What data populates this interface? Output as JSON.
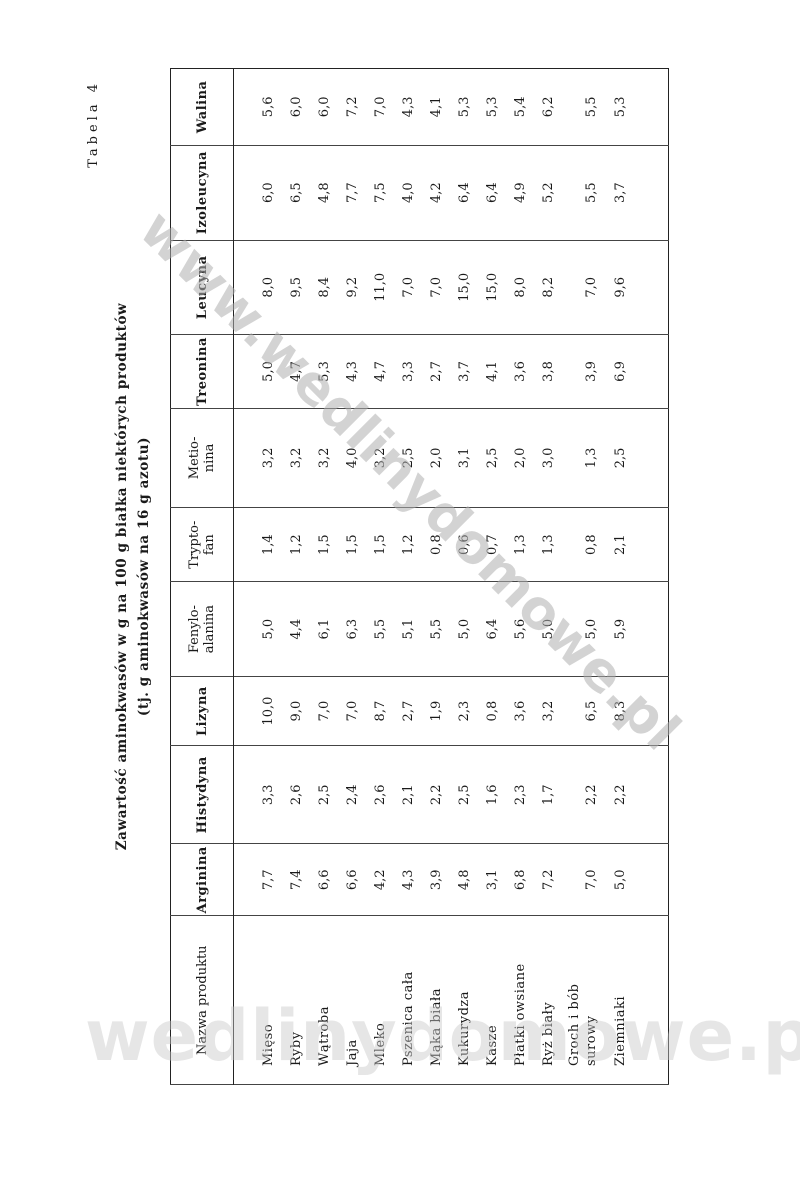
{
  "table_label": "Tabela 4",
  "title_line1": "Zawartość aminokwasów w g na 100 g białka niektórych produktów",
  "title_line2": "(tj. g aminokwasów na 16 g azotu)",
  "columns": [
    "Nazwa produktu",
    "Arginina",
    "Histydyna",
    "Lizyna",
    "Fenylo-\nalanina",
    "Trypto-\nfan",
    "Metio-\nnina",
    "Treonina",
    "Leucyna",
    "Izoleucyna",
    "Walina"
  ],
  "rows": [
    [
      "Mięso",
      "7,7",
      "3,3",
      "10,0",
      "5,0",
      "1,4",
      "3,2",
      "5,0",
      "8,0",
      "6,0",
      "5,6"
    ],
    [
      "Ryby",
      "7,4",
      "2,6",
      "9,0",
      "4,4",
      "1,2",
      "3,2",
      "4,7",
      "9,5",
      "6,5",
      "6,0"
    ],
    [
      "Wątroba",
      "6,6",
      "2,5",
      "7,0",
      "6,1",
      "1,5",
      "3,2",
      "5,3",
      "8,4",
      "4,8",
      "6,0"
    ],
    [
      "Jaja",
      "6,6",
      "2,4",
      "7,0",
      "6,3",
      "1,5",
      "4,0",
      "4,3",
      "9,2",
      "7,7",
      "7,2"
    ],
    [
      "Mleko",
      "4,2",
      "2,6",
      "8,7",
      "5,5",
      "1,5",
      "3,2",
      "4,7",
      "11,0",
      "7,5",
      "7,0"
    ],
    [
      "Pszenica cała",
      "4,3",
      "2,1",
      "2,7",
      "5,1",
      "1,2",
      "2,5",
      "3,3",
      "7,0",
      "4,0",
      "4,3"
    ],
    [
      "Mąka biała",
      "3,9",
      "2,2",
      "1,9",
      "5,5",
      "0,8",
      "2,0",
      "2,7",
      "7,0",
      "4,2",
      "4,1"
    ],
    [
      "Kukurydza",
      "4,8",
      "2,5",
      "2,3",
      "5,0",
      "0,6",
      "3,1",
      "3,7",
      "15,0",
      "6,4",
      "5,3"
    ],
    [
      "Kasze",
      "3,1",
      "1,6",
      "0,8",
      "6,4",
      "0,7",
      "2,5",
      "4,1",
      "15,0",
      "6,4",
      "5,3"
    ],
    [
      "Płatki owsiane",
      "6,8",
      "2,3",
      "3,6",
      "5,6",
      "1,3",
      "2,0",
      "3,6",
      "8,0",
      "4,9",
      "5,4"
    ],
    [
      "Ryż biały",
      "7,2",
      "1,7",
      "3,2",
      "5,0",
      "1,3",
      "3,0",
      "3,8",
      "8,2",
      "5,2",
      "6,2"
    ],
    [
      "Groch i bób\nsurowy",
      "7,0",
      "2,2",
      "6,5",
      "5,0",
      "0,8",
      "1,3",
      "3,9",
      "7,0",
      "5,5",
      "5,5"
    ],
    [
      "Ziemniaki",
      "5,0",
      "2,2",
      "8,3",
      "5,9",
      "2,1",
      "2,5",
      "6,9",
      "9,6",
      "3,7",
      "5,3"
    ]
  ],
  "watermark": "www.wedlinydomowe.pl",
  "watermark_bottom": "wedlinydomowe.pl"
}
